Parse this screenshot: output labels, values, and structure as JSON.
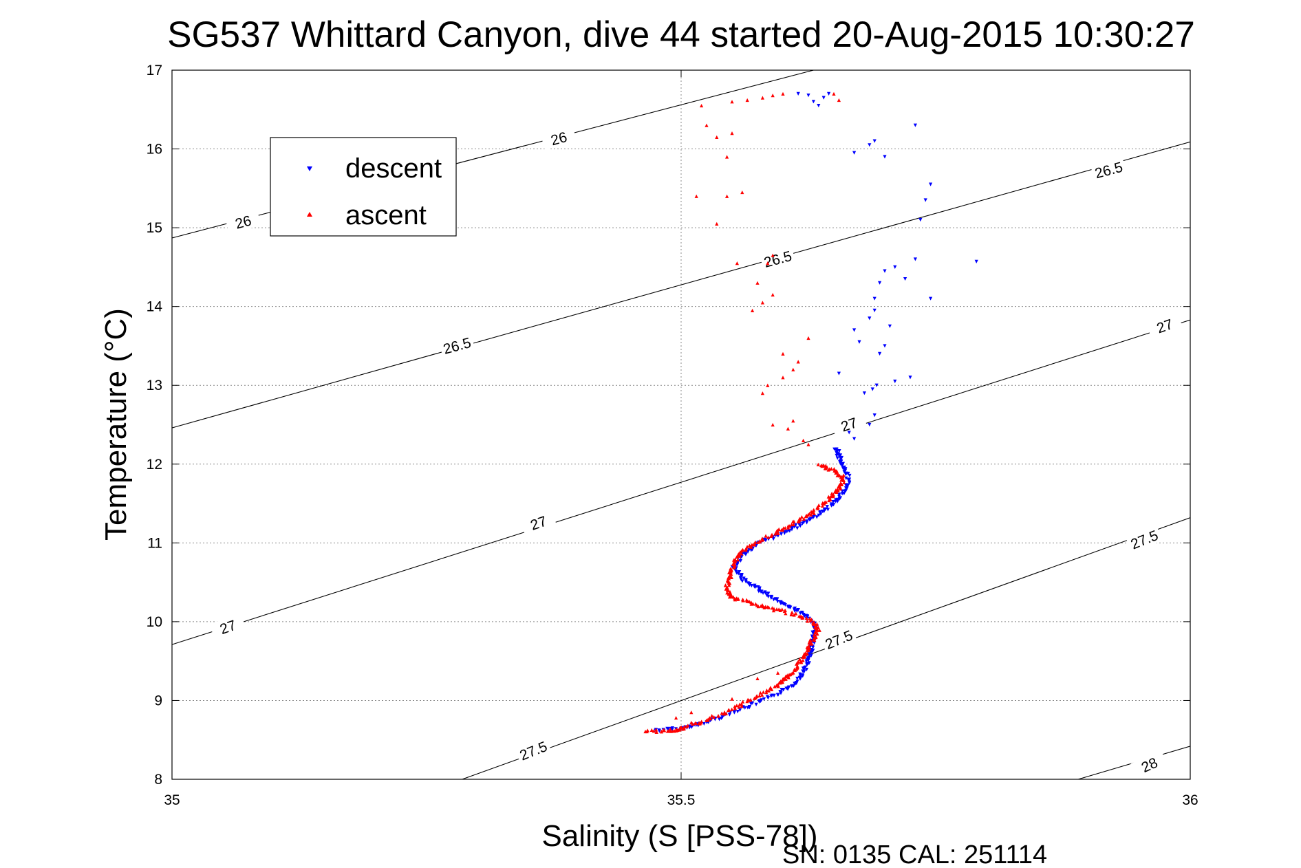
{
  "chart_data": {
    "type": "scatter",
    "title": "SG537 Whittard Canyon, dive 44 started 20-Aug-2015 10:30:27",
    "xlabel": "Salinity (S [PSS-78])",
    "ylabel": "Temperature (°C)",
    "xlim": [
      35,
      36
    ],
    "ylim": [
      8,
      17
    ],
    "xticks": [
      "35",
      "35.5",
      "36"
    ],
    "yticks": [
      "8",
      "9",
      "10",
      "11",
      "12",
      "13",
      "14",
      "15",
      "16",
      "17"
    ],
    "grid": true,
    "legend": {
      "position": "top-left",
      "entries": [
        "descent",
        "ascent"
      ]
    },
    "footer": "SN: 0135  CAL: 251114",
    "contour_labels": [
      "26",
      "26.5",
      "27",
      "27.5",
      "28"
    ],
    "contours": [
      {
        "label": "26",
        "points": [
          [
            35.0,
            14.87
          ],
          [
            35.63,
            17.0
          ]
        ]
      },
      {
        "label": "26.5",
        "points": [
          [
            35.0,
            12.46
          ],
          [
            36.0,
            16.09
          ]
        ]
      },
      {
        "label": "27",
        "points": [
          [
            35.0,
            9.71
          ],
          [
            36.0,
            13.83
          ]
        ]
      },
      {
        "label": "27.5",
        "points": [
          [
            35.285,
            8.0
          ],
          [
            36.0,
            11.32
          ]
        ]
      },
      {
        "label": "28",
        "points": [
          [
            35.89,
            8.0
          ],
          [
            36.0,
            8.42
          ]
        ]
      }
    ],
    "contour_label_positions": [
      {
        "label": "26",
        "x": 35.07,
        "y": 15.07,
        "angle": -15
      },
      {
        "label": "26",
        "x": 35.38,
        "y": 16.13,
        "angle": -15
      },
      {
        "label": "26.5",
        "x": 35.28,
        "y": 13.5,
        "angle": -15
      },
      {
        "label": "26.5",
        "x": 35.595,
        "y": 14.6,
        "angle": -15
      },
      {
        "label": "26.5",
        "x": 35.92,
        "y": 15.73,
        "angle": -15
      },
      {
        "label": "27",
        "x": 35.055,
        "y": 9.93,
        "angle": -19
      },
      {
        "label": "27",
        "x": 35.36,
        "y": 11.25,
        "angle": -19
      },
      {
        "label": "27",
        "x": 35.665,
        "y": 12.5,
        "angle": -19
      },
      {
        "label": "27",
        "x": 35.975,
        "y": 13.75,
        "angle": -19
      },
      {
        "label": "27.5",
        "x": 35.355,
        "y": 8.36,
        "angle": -22
      },
      {
        "label": "27.5",
        "x": 35.655,
        "y": 9.77,
        "angle": -22
      },
      {
        "label": "27.5",
        "x": 35.955,
        "y": 11.04,
        "angle": -22
      },
      {
        "label": "28",
        "x": 35.96,
        "y": 8.18,
        "angle": -24
      }
    ],
    "series": [
      {
        "name": "descent",
        "color": "#0000ff",
        "marker": "triangle-down",
        "path": [
          [
            35.475,
            8.62
          ],
          [
            35.5,
            8.64
          ],
          [
            35.52,
            8.7
          ],
          [
            35.545,
            8.82
          ],
          [
            35.57,
            8.94
          ],
          [
            35.595,
            9.08
          ],
          [
            35.61,
            9.2
          ],
          [
            35.62,
            9.35
          ],
          [
            35.625,
            9.5
          ],
          [
            35.628,
            9.65
          ],
          [
            35.63,
            9.8
          ],
          [
            35.632,
            9.95
          ],
          [
            35.62,
            10.1
          ],
          [
            35.605,
            10.2
          ],
          [
            35.59,
            10.3
          ],
          [
            35.575,
            10.42
          ],
          [
            35.56,
            10.55
          ],
          [
            35.552,
            10.7
          ],
          [
            35.56,
            10.85
          ],
          [
            35.575,
            10.98
          ],
          [
            35.595,
            11.1
          ],
          [
            35.615,
            11.22
          ],
          [
            35.635,
            11.35
          ],
          [
            35.65,
            11.5
          ],
          [
            35.66,
            11.65
          ],
          [
            35.665,
            11.8
          ],
          [
            35.66,
            11.95
          ],
          [
            35.655,
            12.1
          ],
          [
            35.652,
            12.2
          ]
        ],
        "scatter": [
          [
            35.67,
            12.32
          ],
          [
            35.685,
            12.5
          ],
          [
            35.69,
            12.62
          ],
          [
            35.665,
            12.4
          ],
          [
            35.68,
            12.9
          ],
          [
            35.692,
            13.0
          ],
          [
            35.71,
            13.05
          ],
          [
            35.725,
            13.1
          ],
          [
            35.688,
            12.95
          ],
          [
            35.67,
            13.7
          ],
          [
            35.675,
            13.55
          ],
          [
            35.695,
            13.4
          ],
          [
            35.7,
            13.5
          ],
          [
            35.685,
            13.85
          ],
          [
            35.69,
            13.95
          ],
          [
            35.705,
            13.75
          ],
          [
            35.69,
            14.1
          ],
          [
            35.695,
            14.3
          ],
          [
            35.7,
            14.45
          ],
          [
            35.71,
            14.5
          ],
          [
            35.73,
            14.6
          ],
          [
            35.72,
            14.35
          ],
          [
            35.745,
            14.1
          ],
          [
            35.79,
            14.57
          ],
          [
            35.67,
            15.95
          ],
          [
            35.685,
            16.05
          ],
          [
            35.69,
            16.1
          ],
          [
            35.7,
            15.9
          ],
          [
            35.745,
            15.55
          ],
          [
            35.74,
            15.35
          ],
          [
            35.735,
            15.1
          ],
          [
            35.73,
            16.3
          ],
          [
            35.615,
            16.7
          ],
          [
            35.625,
            16.68
          ],
          [
            35.63,
            16.6
          ],
          [
            35.635,
            16.55
          ],
          [
            35.64,
            16.65
          ],
          [
            35.645,
            16.7
          ],
          [
            35.655,
            13.15
          ]
        ]
      },
      {
        "name": "ascent",
        "color": "#ff0000",
        "marker": "triangle-up",
        "path": [
          [
            35.465,
            8.61
          ],
          [
            35.49,
            8.62
          ],
          [
            35.505,
            8.66
          ],
          [
            35.53,
            8.78
          ],
          [
            35.555,
            8.92
          ],
          [
            35.575,
            9.06
          ],
          [
            35.595,
            9.2
          ],
          [
            35.605,
            9.3
          ],
          [
            35.615,
            9.45
          ],
          [
            35.622,
            9.6
          ],
          [
            35.628,
            9.75
          ],
          [
            35.635,
            9.9
          ],
          [
            35.63,
            10.0
          ],
          [
            35.61,
            10.1
          ],
          [
            35.585,
            10.18
          ],
          [
            35.565,
            10.25
          ],
          [
            35.548,
            10.32
          ],
          [
            35.545,
            10.45
          ],
          [
            35.548,
            10.6
          ],
          [
            35.552,
            10.75
          ],
          [
            35.56,
            10.9
          ],
          [
            35.575,
            11.0
          ],
          [
            35.595,
            11.15
          ],
          [
            35.615,
            11.28
          ],
          [
            35.63,
            11.4
          ],
          [
            35.645,
            11.55
          ],
          [
            35.655,
            11.7
          ],
          [
            35.66,
            11.82
          ],
          [
            35.65,
            11.92
          ],
          [
            35.635,
            12.0
          ]
        ],
        "scatter": [
          [
            35.495,
            8.78
          ],
          [
            35.51,
            8.85
          ],
          [
            35.51,
            8.72
          ],
          [
            35.55,
            9.02
          ],
          [
            35.575,
            9.28
          ],
          [
            35.595,
            9.35
          ],
          [
            35.625,
            12.25
          ],
          [
            35.62,
            12.3
          ],
          [
            35.605,
            12.45
          ],
          [
            35.61,
            12.55
          ],
          [
            35.59,
            12.5
          ],
          [
            35.58,
            12.9
          ],
          [
            35.585,
            13.0
          ],
          [
            35.6,
            13.1
          ],
          [
            35.61,
            13.2
          ],
          [
            35.615,
            13.3
          ],
          [
            35.6,
            13.4
          ],
          [
            35.625,
            13.6
          ],
          [
            35.57,
            13.95
          ],
          [
            35.58,
            14.05
          ],
          [
            35.59,
            14.15
          ],
          [
            35.575,
            14.3
          ],
          [
            35.585,
            14.55
          ],
          [
            35.59,
            14.65
          ],
          [
            35.555,
            14.55
          ],
          [
            35.535,
            15.05
          ],
          [
            35.545,
            15.4
          ],
          [
            35.56,
            15.45
          ],
          [
            35.515,
            15.4
          ],
          [
            35.52,
            16.55
          ],
          [
            35.525,
            16.3
          ],
          [
            35.535,
            16.15
          ],
          [
            35.545,
            15.9
          ],
          [
            35.55,
            16.6
          ],
          [
            35.565,
            16.62
          ],
          [
            35.58,
            16.65
          ],
          [
            35.59,
            16.68
          ],
          [
            35.6,
            16.7
          ],
          [
            35.65,
            16.7
          ],
          [
            35.655,
            16.62
          ],
          [
            35.55,
            16.2
          ]
        ]
      }
    ]
  }
}
